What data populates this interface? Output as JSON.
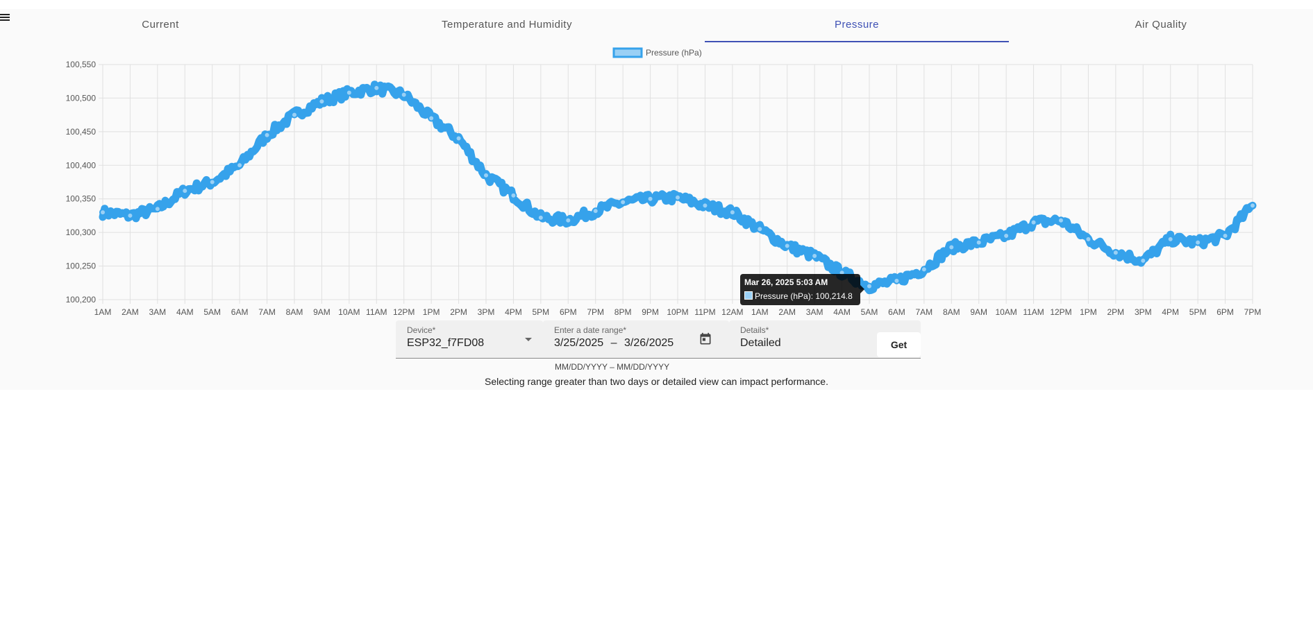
{
  "tabs": [
    {
      "label": "Current"
    },
    {
      "label": "Temperature and Humidity"
    },
    {
      "label": "Pressure"
    },
    {
      "label": "Air Quality"
    }
  ],
  "active_tab": "Pressure",
  "colors": {
    "accent": "#3f51b5",
    "series_line": "#36a2eb",
    "series_fill": "#9ad0f5"
  },
  "chart_data": {
    "type": "line",
    "legend": {
      "entries": [
        "Pressure (hPa)"
      ],
      "position": "top"
    },
    "series": [
      {
        "name": "Pressure (hPa)",
        "x": [
          "1AM",
          "2AM",
          "3AM",
          "4AM",
          "5AM",
          "6AM",
          "7AM",
          "8AM",
          "9AM",
          "10AM",
          "11AM",
          "12PM",
          "1PM",
          "2PM",
          "3PM",
          "4PM",
          "5PM",
          "6PM",
          "7PM",
          "8PM",
          "9PM",
          "10PM",
          "11PM",
          "12AM",
          "1AM",
          "2AM",
          "3AM",
          "4AM",
          "5AM",
          "6AM",
          "7AM",
          "8AM",
          "9AM",
          "10AM",
          "11AM",
          "12PM",
          "1PM",
          "2PM",
          "3PM",
          "4PM",
          "5PM",
          "6PM",
          "7PM"
        ],
        "values": [
          100330,
          100325,
          100335,
          100362,
          100375,
          100400,
          100445,
          100475,
          100495,
          100508,
          100515,
          100505,
          100470,
          100440,
          100385,
          100355,
          100322,
          100318,
          100332,
          100345,
          100350,
          100352,
          100340,
          100330,
          100305,
          100280,
          100265,
          100240,
          100220,
          100228,
          100245,
          100278,
          100285,
          100295,
          100315,
          100318,
          100290,
          100270,
          100258,
          100290,
          100285,
          100295,
          100340
        ]
      }
    ],
    "x_ticks": [
      "1AM",
      "2AM",
      "3AM",
      "4AM",
      "5AM",
      "6AM",
      "7AM",
      "8AM",
      "9AM",
      "10AM",
      "11AM",
      "12PM",
      "1PM",
      "2PM",
      "3PM",
      "4PM",
      "5PM",
      "6PM",
      "7PM",
      "8PM",
      "9PM",
      "10PM",
      "11PM",
      "12AM",
      "1AM",
      "2AM",
      "3AM",
      "4AM",
      "5AM",
      "6AM",
      "7AM",
      "8AM",
      "9AM",
      "10AM",
      "11AM",
      "12PM",
      "1PM",
      "2PM",
      "3PM",
      "4PM",
      "5PM",
      "6PM",
      "7PM"
    ],
    "y_ticks": [
      "100,550",
      "100,500",
      "100,450",
      "100,400",
      "100,350",
      "100,300",
      "100,250",
      "100,200"
    ],
    "ylim": [
      100200,
      100550
    ],
    "grid": true,
    "tooltip": {
      "title": "Mar 26, 2025 5:03 AM",
      "label": "Pressure (hPa): 100,214.8"
    }
  },
  "form": {
    "device_label": "Device*",
    "device_value": "ESP32_f7FD08",
    "date_label": "Enter a date range*",
    "date_start": "3/25/2025",
    "date_sep": "–",
    "date_end": "3/26/2025",
    "date_hint": "MM/DD/YYYY – MM/DD/YYYY",
    "details_label": "Details*",
    "details_value": "Detailed",
    "get_label": "Get"
  },
  "note": "Selecting range greater than two days or detailed view can impact performance."
}
